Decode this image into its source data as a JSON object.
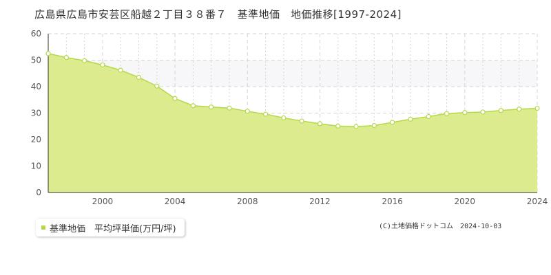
{
  "title": "広島県広島市安芸区船越２丁目３８番７　基準地価　地価推移[1997-2024]",
  "footer": "(C)土地価格ドットコム　2024-10-03",
  "legend": {
    "label": "基準地価　平均坪単価(万円/坪)",
    "icon": "square-marker-icon"
  },
  "colors": {
    "area_fill": "#dbeb8e",
    "line": "#b5d84a",
    "marker_stroke": "#b5d84a",
    "marker_fill": "#ffffff",
    "highlight_band": "#f7f7fa",
    "grid": "#d4d4d4",
    "axis": "#333333"
  },
  "chart_data": {
    "type": "area",
    "x": [
      1997,
      1998,
      1999,
      2000,
      2001,
      2002,
      2003,
      2004,
      2005,
      2006,
      2007,
      2008,
      2009,
      2010,
      2011,
      2012,
      2013,
      2014,
      2015,
      2016,
      2017,
      2018,
      2019,
      2020,
      2021,
      2022,
      2023,
      2024
    ],
    "series": [
      {
        "name": "基準地価　平均坪単価(万円/坪)",
        "values": [
          52.5,
          51.0,
          49.8,
          48.2,
          46.2,
          43.5,
          40.2,
          35.5,
          32.8,
          32.3,
          31.9,
          30.7,
          29.6,
          28.2,
          27.0,
          26.0,
          25.1,
          24.9,
          25.3,
          26.5,
          27.7,
          28.7,
          29.8,
          30.2,
          30.4,
          31.0,
          31.5,
          31.8
        ]
      }
    ],
    "xticks": [
      2000,
      2004,
      2008,
      2012,
      2016,
      2020,
      2024
    ],
    "yticks": [
      0,
      10,
      20,
      30,
      40,
      50,
      60
    ],
    "xlim": [
      1997,
      2024
    ],
    "ylim": [
      0,
      60
    ],
    "highlight_band": [
      40,
      50
    ],
    "grid": true
  }
}
